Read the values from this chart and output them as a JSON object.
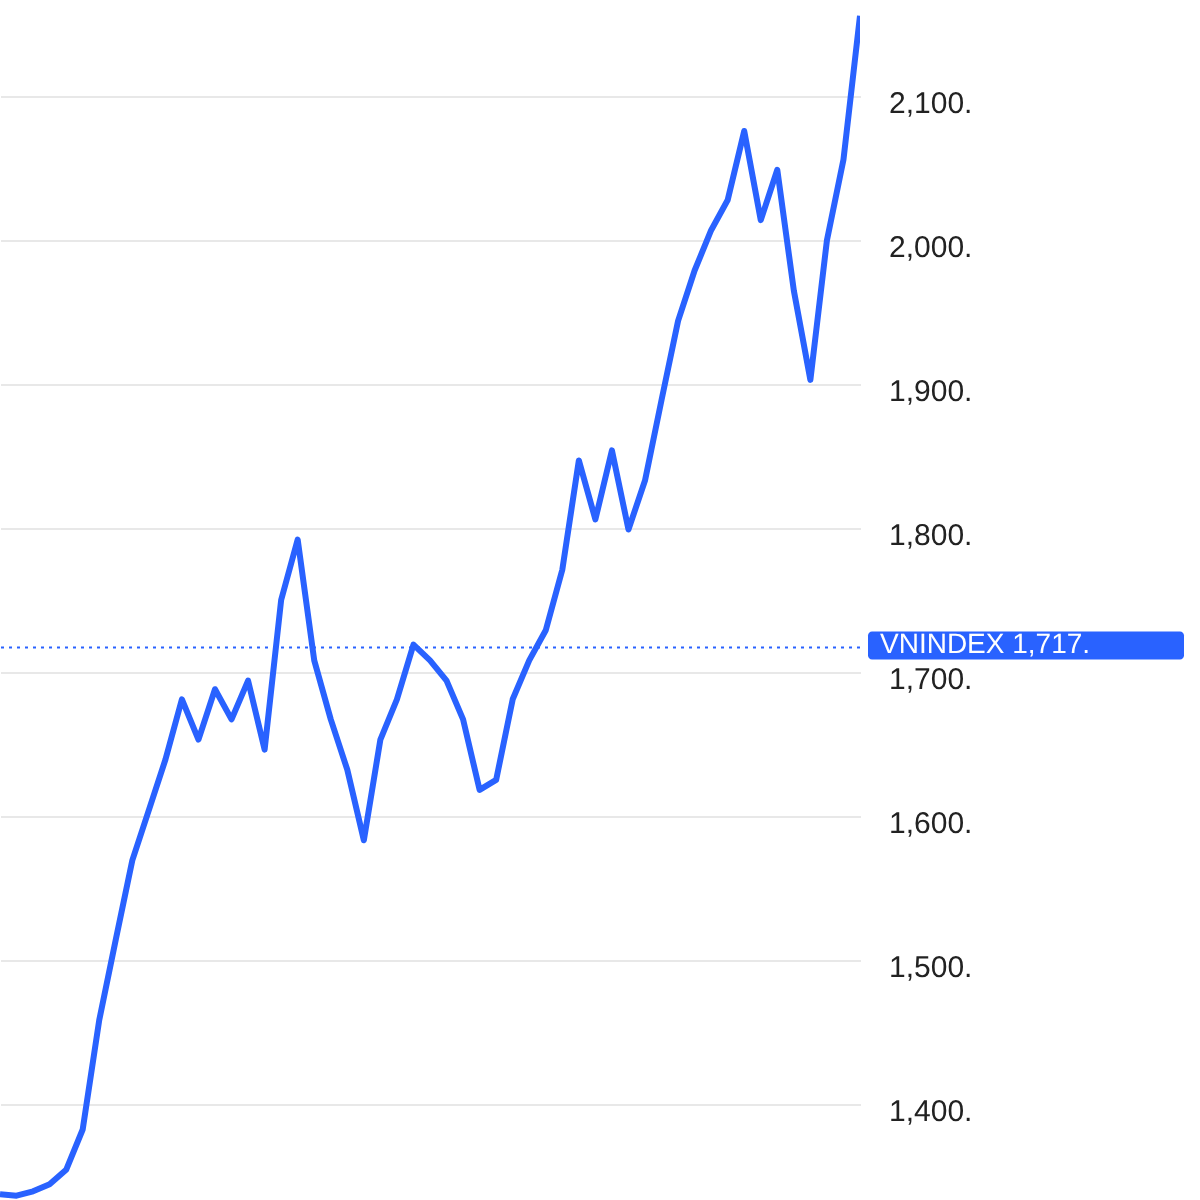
{
  "chart_data": {
    "type": "line",
    "categories": [
      null,
      null,
      null,
      null,
      null,
      null,
      null,
      null,
      null,
      null,
      null,
      null,
      null,
      null,
      null,
      null,
      null,
      null,
      null,
      null,
      null,
      null,
      null,
      null,
      null,
      null,
      null,
      null,
      null,
      null,
      null,
      null,
      null,
      null,
      null,
      null,
      null,
      null,
      null,
      null,
      null,
      null,
      null,
      null,
      null,
      null,
      null,
      null,
      null,
      null,
      null,
      null,
      null
    ],
    "series": [
      {
        "color": "#2962ff",
        "values": [
          1337,
          1336,
          1339,
          1344,
          1354,
          1382,
          1458,
          1514,
          1569,
          1604,
          1639,
          1681,
          1653,
          1688,
          1667,
          1694,
          1646,
          1750,
          1792,
          1708,
          1667,
          1632,
          1583,
          1653,
          1681,
          1719,
          1708,
          1694,
          1667,
          1618,
          1625,
          1681,
          1708,
          1729,
          1771,
          1847,
          1806,
          1854,
          1799,
          1833,
          1889,
          1944,
          1979,
          2007,
          2028,
          2076,
          2014,
          2049,
          1965,
          1903,
          2000,
          2056,
          2156
        ]
      }
    ],
    "ylim": [
      1333,
      2167
    ],
    "yticks": [
      {
        "value": 1400,
        "label": "1,400."
      },
      {
        "value": 1500,
        "label": "1,500."
      },
      {
        "value": 1600,
        "label": "1,600."
      },
      {
        "value": 1700,
        "label": "1,700."
      },
      {
        "value": 1800,
        "label": "1,800."
      },
      {
        "value": 1900,
        "label": "1,900."
      },
      {
        "value": 2000,
        "label": "2,000."
      },
      {
        "value": 2100,
        "label": "2,100."
      }
    ],
    "grid": "y",
    "ref_lines": [
      {
        "axis": "y",
        "value": 1717,
        "label": "VNINDEX  1,717.",
        "color": "#2962ff",
        "line_style": "dotted"
      }
    ]
  }
}
